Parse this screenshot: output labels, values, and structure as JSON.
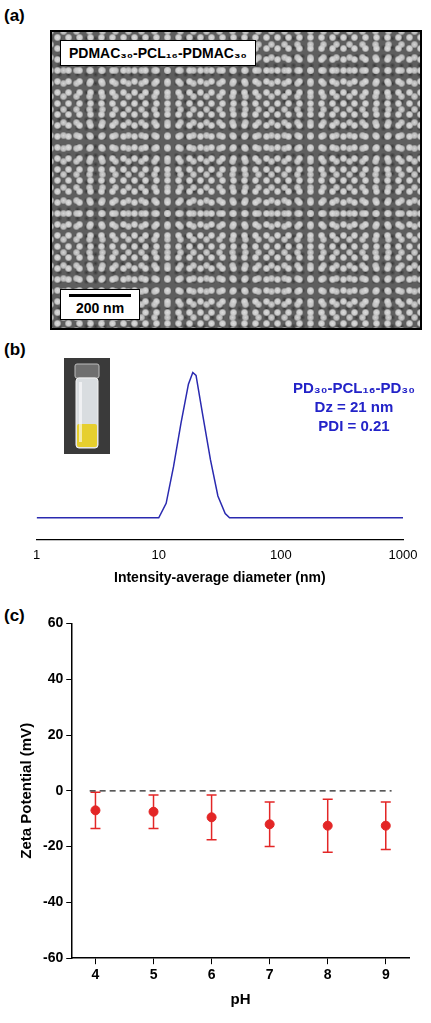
{
  "chart_data": [
    {
      "type": "image",
      "panel": "(a)",
      "title": "PDMAC₃₀-PCL₁₆-PDMAC₃₀",
      "scale_bar": "200 nm"
    },
    {
      "type": "line",
      "panel": "(b)",
      "x": [
        1,
        2,
        5,
        10,
        11.5,
        13.2,
        15.2,
        17.5,
        19,
        20.2,
        23,
        26.5,
        30.5,
        35,
        38,
        100,
        1000
      ],
      "values": [
        0,
        0,
        0,
        0,
        10,
        35,
        65,
        92,
        100,
        98,
        70,
        40,
        15,
        3,
        0,
        0,
        0
      ],
      "color": "#2a2ab0",
      "xlabel": "Intensity-average diameter (nm)",
      "xlim": [
        1,
        1000
      ],
      "xticks": [
        1,
        10,
        100,
        1000
      ],
      "ylim": [
        -15,
        110
      ],
      "log": "x",
      "tick_labels": "x",
      "grid": false,
      "annotations": [
        "PD₃₀-PCL₁₆-PD₃₀",
        "Dz = 21 nm",
        "PDI = 0.21"
      ]
    },
    {
      "type": "scatter",
      "panel": "(c)",
      "x": [
        4,
        5,
        6,
        7,
        8,
        9
      ],
      "values": [
        -7,
        -7.5,
        -9.5,
        -12,
        -12.5,
        -12.5
      ],
      "errors": [
        6.5,
        6,
        8,
        8,
        9.5,
        8.5
      ],
      "color": "#e32626",
      "marker": "circle",
      "xlabel": "pH",
      "ylabel": "Zeta Potential (mV)",
      "xlim": [
        3.6,
        9.4
      ],
      "xticks": [
        4,
        5,
        6,
        7,
        8,
        9
      ],
      "ylim": [
        -60,
        60
      ],
      "yticks": [
        -60,
        -40,
        -20,
        0,
        20,
        40,
        60
      ],
      "grid": false,
      "reference_line": {
        "y": 0,
        "x": [
          3.9,
          9.1
        ],
        "line_style": "dashed"
      }
    }
  ]
}
